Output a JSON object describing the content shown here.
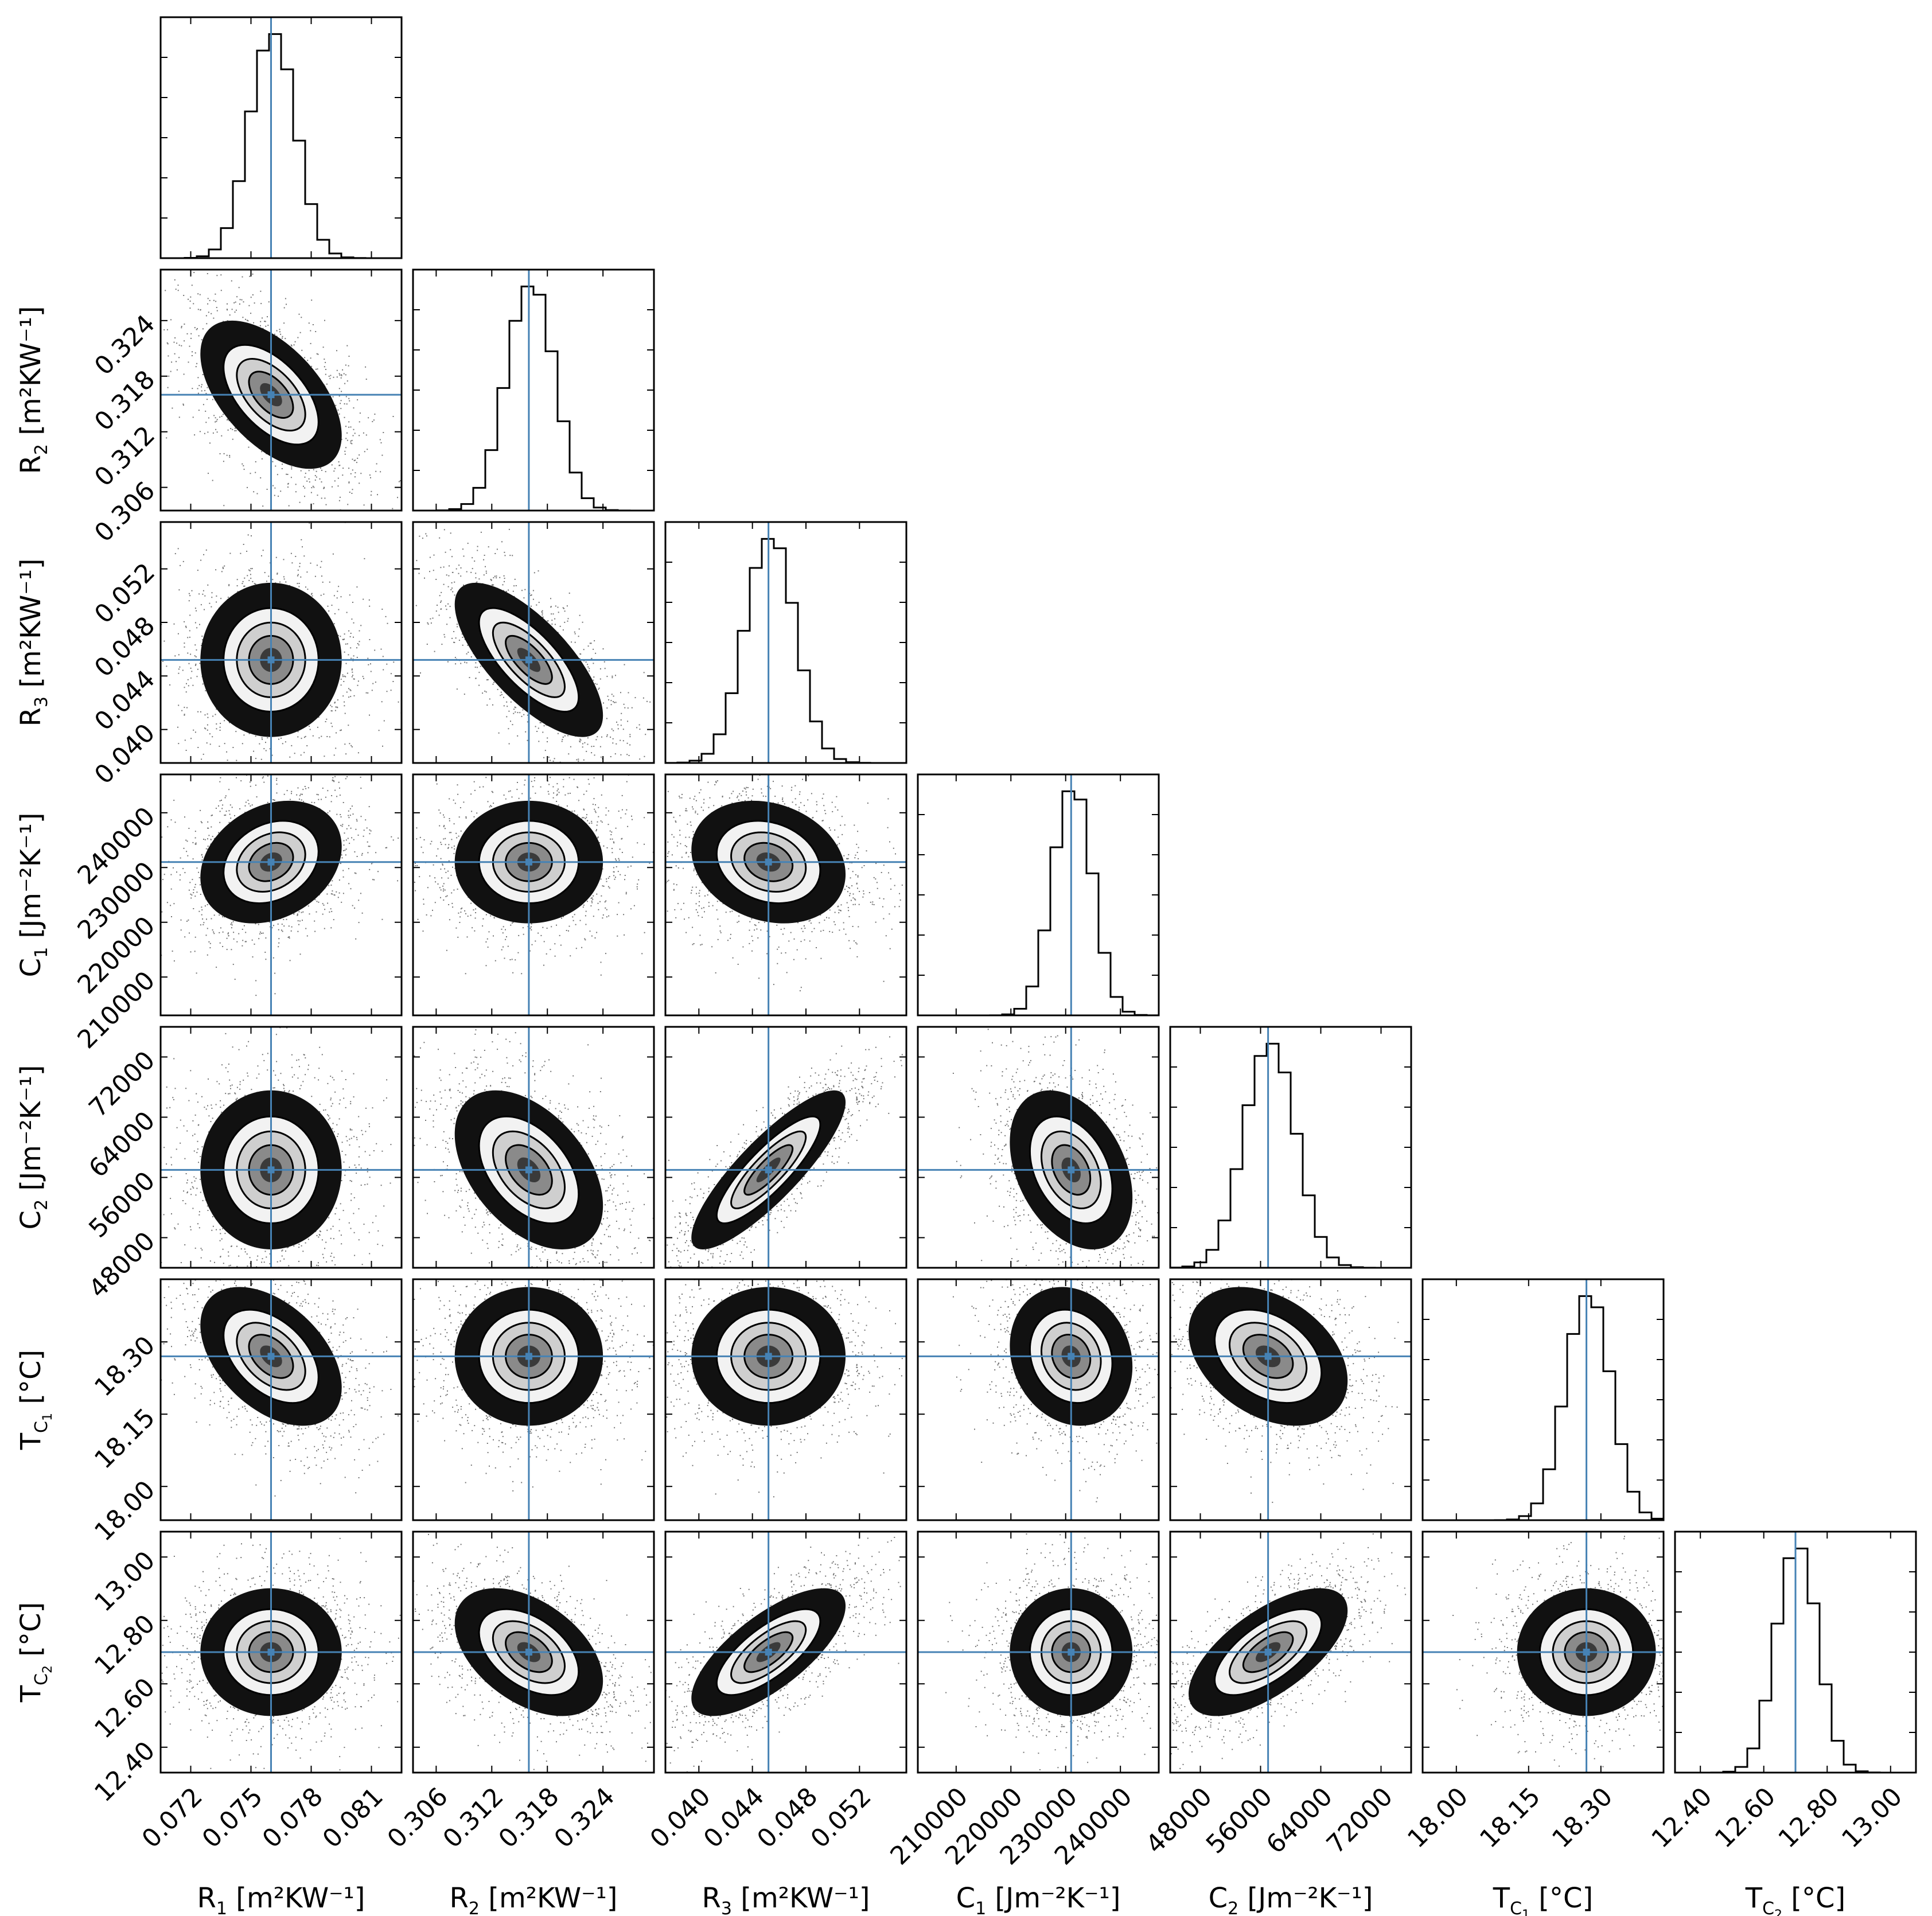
{
  "chart_data": {
    "type": "corner",
    "title": "",
    "parameters": [
      {
        "key": "R1",
        "label_main": "R",
        "label_sub": "1",
        "label_unit": " [m²KW⁻¹]",
        "range": [
          0.0705,
          0.0825
        ],
        "ticks": [
          0.072,
          0.075,
          0.078,
          0.081
        ],
        "tick_labels": [
          "0.072",
          "0.075",
          "0.078",
          "0.081"
        ],
        "truth": 0.076,
        "sd": 0.0011
      },
      {
        "key": "R2",
        "label_main": "R",
        "label_sub": "2",
        "label_unit": " [m²KW⁻¹]",
        "range": [
          0.3035,
          0.3295
        ],
        "ticks": [
          0.306,
          0.312,
          0.318,
          0.324
        ],
        "tick_labels": [
          "0.306",
          "0.312",
          "0.318",
          "0.324"
        ],
        "truth": 0.316,
        "sd": 0.0025
      },
      {
        "key": "R3",
        "label_main": "R",
        "label_sub": "3",
        "label_unit": " [m²KW⁻¹]",
        "range": [
          0.0375,
          0.0555
        ],
        "ticks": [
          0.04,
          0.044,
          0.048,
          0.052
        ],
        "tick_labels": [
          "0.040",
          "0.044",
          "0.048",
          "0.052"
        ],
        "truth": 0.0452,
        "sd": 0.0018
      },
      {
        "key": "C1",
        "label_main": "C",
        "label_sub": "1",
        "label_unit": " [Jm⁻²K⁻¹]",
        "range": [
          203000,
          247000
        ],
        "ticks": [
          210000,
          220000,
          230000,
          240000
        ],
        "tick_labels": [
          "210000",
          "220000",
          "230000",
          "240000"
        ],
        "truth": 231000,
        "sd": 3500
      },
      {
        "key": "C2",
        "label_main": "C",
        "label_sub": "2",
        "label_unit": " [Jm⁻²K⁻¹]",
        "range": [
          44000,
          76000
        ],
        "ticks": [
          48000,
          56000,
          64000,
          72000
        ],
        "tick_labels": [
          "48000",
          "56000",
          "64000",
          "72000"
        ],
        "truth": 57000,
        "sd": 3300
      },
      {
        "key": "Tc1",
        "label_main": "T",
        "label_sub": "C1",
        "label_unit": " [°C]",
        "range": [
          17.93,
          18.43
        ],
        "ticks": [
          18.0,
          18.15,
          18.3
        ],
        "tick_labels": [
          "18.00",
          "18.15",
          "18.30"
        ],
        "truth": 18.27,
        "sd": 0.045
      },
      {
        "key": "Tc2",
        "label_main": "T",
        "label_sub": "C2",
        "label_unit": " [°C]",
        "range": [
          12.32,
          13.08
        ],
        "ticks": [
          12.4,
          12.6,
          12.8,
          13.0
        ],
        "tick_labels": [
          "12.40",
          "12.60",
          "12.80",
          "13.00"
        ],
        "truth": 12.7,
        "sd": 0.063
      }
    ],
    "correlations": {
      "R2|R1": -0.55,
      "R3|R1": 0.0,
      "C1|R1": 0.25,
      "C2|R1": 0.0,
      "Tc1|R1": -0.45,
      "Tc2|R1": 0.0,
      "R3|R2": -0.72,
      "C1|R2": 0.0,
      "C2|R2": -0.45,
      "Tc1|R2": 0.0,
      "Tc2|R2": -0.45,
      "C1|R3": -0.2,
      "C2|R3": 0.85,
      "Tc1|R3": 0.0,
      "Tc2|R3": 0.72,
      "C2|C1": -0.35,
      "Tc1|C1": -0.15,
      "Tc2|C1": 0.0,
      "Tc1|C2": -0.35,
      "Tc2|C2": 0.65,
      "Tc2|Tc1": 0.0
    },
    "truth_line_color": "#4682b4",
    "histogram_color": "#000000",
    "density_colormap": "greys",
    "grid": false,
    "legend": "none"
  }
}
